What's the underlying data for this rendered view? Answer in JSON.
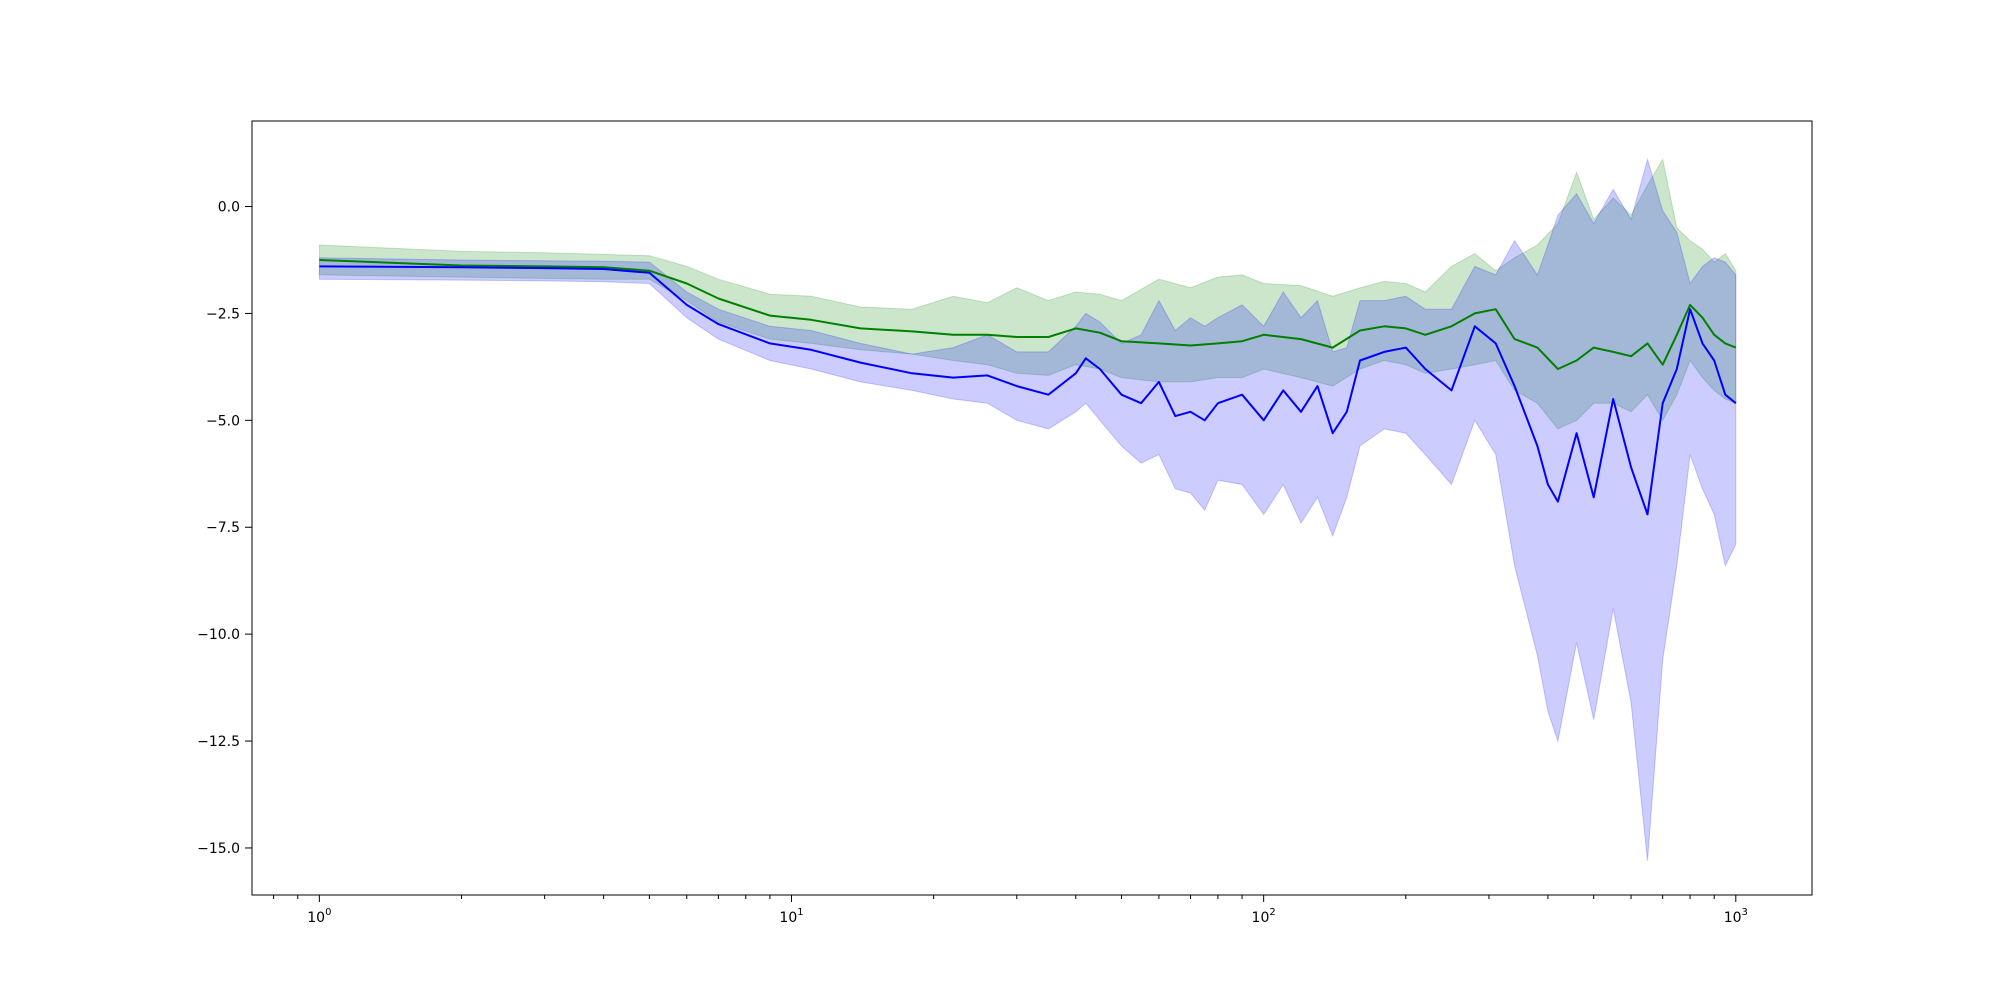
{
  "chart_data": {
    "type": "line",
    "title": "",
    "xlabel": "",
    "ylabel": "",
    "x_scale": "log",
    "xlim": [
      0.72,
      1450
    ],
    "ylim": [
      -16.1,
      2.0
    ],
    "grid": false,
    "legend": "none",
    "x_ticks": [
      {
        "value": 1,
        "base": "10",
        "exp": "0"
      },
      {
        "value": 10,
        "base": "10",
        "exp": "1"
      },
      {
        "value": 100,
        "base": "10",
        "exp": "2"
      },
      {
        "value": 1000,
        "base": "10",
        "exp": "3"
      }
    ],
    "y_ticks": [
      {
        "value": 0.0,
        "label": "0.0"
      },
      {
        "value": -2.5,
        "label": "−2.5"
      },
      {
        "value": -5.0,
        "label": "−5.0"
      },
      {
        "value": -7.5,
        "label": "−7.5"
      },
      {
        "value": -10.0,
        "label": "−10.0"
      },
      {
        "value": -12.5,
        "label": "−12.5"
      },
      {
        "value": -15.0,
        "label": "−15.0"
      }
    ],
    "series": [
      {
        "color": "#008000",
        "band_color": "#008000",
        "band_opacity": 0.2,
        "x": [
          1,
          2,
          3,
          4,
          5,
          6,
          7,
          9,
          11,
          14,
          18,
          22,
          26,
          30,
          35,
          40,
          45,
          50,
          60,
          70,
          80,
          90,
          100,
          120,
          140,
          160,
          180,
          200,
          220,
          250,
          280,
          310,
          340,
          380,
          420,
          460,
          500,
          550,
          600,
          650,
          700,
          750,
          800,
          850,
          900,
          950,
          1000
        ],
        "y": [
          -1.25,
          -1.38,
          -1.4,
          -1.42,
          -1.5,
          -1.8,
          -2.15,
          -2.55,
          -2.65,
          -2.85,
          -2.92,
          -3.0,
          -3.0,
          -3.05,
          -3.05,
          -2.85,
          -2.95,
          -3.15,
          -3.2,
          -3.25,
          -3.2,
          -3.15,
          -3.0,
          -3.1,
          -3.3,
          -2.9,
          -2.8,
          -2.85,
          -3.0,
          -2.8,
          -2.5,
          -2.4,
          -3.1,
          -3.3,
          -3.8,
          -3.6,
          -3.3,
          -3.4,
          -3.5,
          -3.2,
          -3.7,
          -3.0,
          -2.3,
          -2.6,
          -3.0,
          -3.2,
          -3.3
        ],
        "lower": [
          -1.6,
          -1.65,
          -1.68,
          -1.7,
          -1.7,
          -2.2,
          -2.7,
          -3.1,
          -3.2,
          -3.35,
          -3.45,
          -3.6,
          -3.7,
          -3.9,
          -3.95,
          -3.7,
          -3.8,
          -4.0,
          -4.1,
          -4.1,
          -4.0,
          -4.0,
          -3.8,
          -4.0,
          -4.2,
          -3.8,
          -3.6,
          -3.7,
          -3.9,
          -3.8,
          -3.7,
          -3.6,
          -4.3,
          -4.6,
          -5.2,
          -5.0,
          -4.6,
          -4.6,
          -4.8,
          -4.4,
          -5.0,
          -4.4,
          -3.6,
          -4.0,
          -4.3,
          -4.5,
          -4.6
        ],
        "upper": [
          -0.9,
          -1.05,
          -1.08,
          -1.12,
          -1.15,
          -1.4,
          -1.7,
          -2.05,
          -2.1,
          -2.35,
          -2.4,
          -2.1,
          -2.25,
          -1.9,
          -2.2,
          -2.0,
          -2.05,
          -2.2,
          -1.7,
          -1.9,
          -1.65,
          -1.6,
          -1.8,
          -1.85,
          -2.1,
          -1.9,
          -1.75,
          -1.8,
          -2.0,
          -1.4,
          -1.1,
          -1.5,
          -1.2,
          -0.9,
          -0.4,
          0.8,
          -0.3,
          0.2,
          -0.2,
          0.5,
          1.1,
          -0.5,
          -0.8,
          -1.0,
          -1.3,
          -1.1,
          -1.5
        ]
      },
      {
        "color": "#0000ff",
        "band_color": "#0000ff",
        "band_opacity": 0.2,
        "x": [
          1,
          2,
          3,
          4,
          5,
          6,
          7,
          9,
          11,
          14,
          18,
          22,
          26,
          30,
          35,
          40,
          42,
          45,
          50,
          55,
          60,
          65,
          70,
          75,
          80,
          90,
          100,
          110,
          120,
          130,
          140,
          150,
          160,
          180,
          200,
          220,
          250,
          280,
          310,
          340,
          380,
          400,
          420,
          460,
          500,
          550,
          600,
          650,
          700,
          750,
          800,
          850,
          900,
          950,
          1000
        ],
        "y": [
          -1.4,
          -1.42,
          -1.44,
          -1.46,
          -1.55,
          -2.3,
          -2.75,
          -3.2,
          -3.35,
          -3.65,
          -3.9,
          -4.0,
          -3.95,
          -4.2,
          -4.4,
          -3.9,
          -3.55,
          -3.8,
          -4.4,
          -4.6,
          -4.1,
          -4.9,
          -4.8,
          -5.0,
          -4.6,
          -4.4,
          -5.0,
          -4.3,
          -4.8,
          -4.2,
          -5.3,
          -4.8,
          -3.6,
          -3.4,
          -3.3,
          -3.8,
          -4.3,
          -2.8,
          -3.2,
          -4.2,
          -5.6,
          -6.5,
          -6.9,
          -5.3,
          -6.8,
          -4.5,
          -6.1,
          -7.2,
          -4.6,
          -3.8,
          -2.4,
          -3.2,
          -3.6,
          -4.4,
          -4.6
        ],
        "lower": [
          -1.7,
          -1.72,
          -1.74,
          -1.76,
          -1.8,
          -2.6,
          -3.1,
          -3.6,
          -3.8,
          -4.1,
          -4.3,
          -4.5,
          -4.6,
          -5.0,
          -5.2,
          -4.8,
          -4.6,
          -5.0,
          -5.6,
          -6.0,
          -5.8,
          -6.6,
          -6.7,
          -7.1,
          -6.4,
          -6.5,
          -7.2,
          -6.5,
          -7.4,
          -6.8,
          -7.7,
          -6.8,
          -5.6,
          -5.2,
          -5.3,
          -5.8,
          -6.5,
          -5.0,
          -5.8,
          -8.4,
          -10.5,
          -11.8,
          -12.5,
          -10.2,
          -12.0,
          -9.4,
          -11.6,
          -15.3,
          -10.6,
          -8.4,
          -5.8,
          -6.6,
          -7.2,
          -8.4,
          -7.9
        ],
        "upper": [
          -1.2,
          -1.25,
          -1.27,
          -1.28,
          -1.3,
          -2.0,
          -2.4,
          -2.8,
          -2.9,
          -3.2,
          -3.45,
          -3.3,
          -3.0,
          -3.4,
          -3.4,
          -2.8,
          -2.5,
          -2.7,
          -3.2,
          -3.0,
          -2.2,
          -2.9,
          -2.6,
          -2.8,
          -2.6,
          -2.3,
          -2.8,
          -2.0,
          -2.6,
          -2.2,
          -3.4,
          -3.3,
          -2.2,
          -2.2,
          -2.1,
          -2.4,
          -2.4,
          -1.4,
          -1.6,
          -0.8,
          -1.6,
          -0.9,
          -0.2,
          0.3,
          -0.4,
          0.4,
          -0.3,
          1.1,
          -0.1,
          -0.6,
          -1.8,
          -1.4,
          -1.2,
          -1.3,
          -1.6
        ]
      }
    ]
  }
}
